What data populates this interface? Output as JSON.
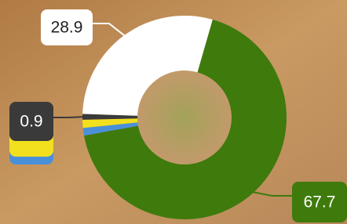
{
  "chart_data": {
    "type": "donut",
    "values": [
      28.9,
      67.7,
      1.2,
      1.3,
      0.9
    ],
    "colors": [
      "#ffffff",
      "#3e7a0c",
      "#4a90d9",
      "#f2e01e",
      "#3a3a3a"
    ],
    "label_colors": [
      "#ffffff",
      "#3e7a0c",
      "#4a90d9",
      "#f2e01e",
      "#3a3a3a"
    ],
    "shown_labels": [
      0,
      1,
      4
    ]
  }
}
